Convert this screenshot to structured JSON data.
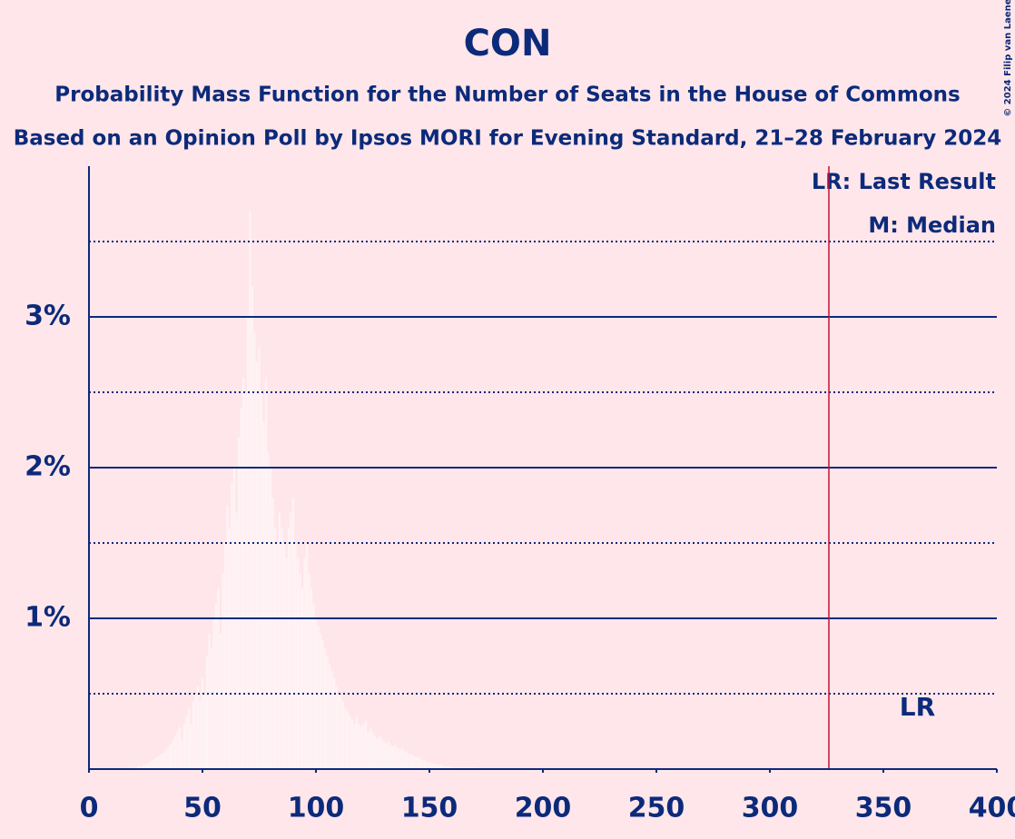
{
  "chart_data": {
    "type": "bar",
    "title": "CON",
    "subtitle": "Probability Mass Function for the Number of Seats in the House of Commons",
    "subtitle2": "Based on an Opinion Poll by Ipsos MORI for Evening Standard, 21–28 February 2024",
    "copyright": "© 2024 Filip van Laenen",
    "legend": [
      "LR: Last Result",
      "M: Median"
    ],
    "last_result": {
      "x": 365,
      "label": "LR"
    },
    "majority_line": 326,
    "majority_color": "#c8102e",
    "color": "#fff3f5",
    "x": [
      20,
      21,
      22,
      23,
      24,
      25,
      26,
      27,
      28,
      29,
      30,
      31,
      32,
      33,
      34,
      35,
      36,
      37,
      38,
      39,
      40,
      41,
      42,
      43,
      44,
      45,
      46,
      47,
      48,
      49,
      50,
      51,
      52,
      53,
      54,
      55,
      56,
      57,
      58,
      59,
      60,
      61,
      62,
      63,
      64,
      65,
      66,
      67,
      68,
      69,
      70,
      71,
      72,
      73,
      74,
      75,
      76,
      77,
      78,
      79,
      80,
      81,
      82,
      83,
      84,
      85,
      86,
      87,
      88,
      89,
      90,
      91,
      92,
      93,
      94,
      95,
      96,
      97,
      98,
      99,
      100,
      101,
      102,
      103,
      104,
      105,
      106,
      107,
      108,
      109,
      110,
      111,
      112,
      113,
      114,
      115,
      116,
      117,
      118,
      119,
      120,
      121,
      122,
      123,
      124,
      125,
      126,
      127,
      128,
      129,
      130,
      131,
      132,
      133,
      134,
      135,
      136,
      137,
      138,
      139,
      140,
      141,
      142,
      143,
      144,
      145,
      146,
      147,
      148,
      149,
      150,
      151,
      152,
      153,
      154,
      155,
      156,
      157,
      158,
      159,
      160,
      161,
      162,
      163,
      164,
      165,
      166,
      167,
      168,
      169,
      170
    ],
    "values": [
      0.01,
      0.01,
      0.02,
      0.02,
      0.03,
      0.03,
      0.04,
      0.05,
      0.06,
      0.07,
      0.08,
      0.09,
      0.1,
      0.11,
      0.13,
      0.15,
      0.17,
      0.19,
      0.22,
      0.25,
      0.28,
      0.2,
      0.3,
      0.35,
      0.4,
      0.3,
      0.45,
      0.5,
      0.55,
      0.45,
      0.6,
      0.5,
      0.75,
      0.9,
      0.8,
      1.0,
      1.1,
      1.2,
      0.9,
      1.3,
      1.5,
      1.75,
      1.6,
      1.9,
      2.0,
      1.7,
      2.2,
      2.4,
      2.6,
      2.5,
      3.0,
      3.7,
      3.2,
      2.9,
      2.7,
      2.8,
      2.5,
      2.3,
      2.6,
      2.1,
      2.0,
      1.8,
      1.6,
      1.5,
      1.7,
      1.6,
      1.5,
      1.4,
      1.6,
      1.7,
      1.8,
      1.5,
      1.4,
      1.3,
      1.2,
      1.4,
      1.5,
      1.3,
      1.2,
      1.1,
      1.0,
      0.95,
      0.9,
      0.85,
      0.8,
      0.75,
      0.7,
      0.65,
      0.6,
      0.55,
      0.5,
      0.48,
      0.45,
      0.4,
      0.38,
      0.35,
      0.33,
      0.3,
      0.35,
      0.3,
      0.28,
      0.3,
      0.32,
      0.25,
      0.27,
      0.25,
      0.22,
      0.2,
      0.22,
      0.2,
      0.18,
      0.17,
      0.18,
      0.16,
      0.15,
      0.16,
      0.14,
      0.13,
      0.14,
      0.12,
      0.11,
      0.1,
      0.1,
      0.09,
      0.08,
      0.08,
      0.07,
      0.06,
      0.06,
      0.05,
      0.05,
      0.04,
      0.04,
      0.03,
      0.03,
      0.03,
      0.02,
      0.02,
      0.02,
      0.02,
      0.01,
      0.01,
      0.01,
      0.01,
      0.01,
      0.01,
      0.01,
      0.01,
      0.01,
      0.01,
      0.01
    ],
    "xlim": [
      0,
      400
    ],
    "xticks": [
      0,
      50,
      100,
      150,
      200,
      250,
      300,
      350,
      400
    ],
    "ylim": [
      0,
      4
    ],
    "yticks": [
      {
        "value": 1,
        "label": "1%"
      },
      {
        "value": 2,
        "label": "2%"
      },
      {
        "value": 3,
        "label": "3%"
      }
    ],
    "minor_gridlines": [
      0.5,
      1.5,
      2.5,
      3.5
    ],
    "grid": true
  }
}
